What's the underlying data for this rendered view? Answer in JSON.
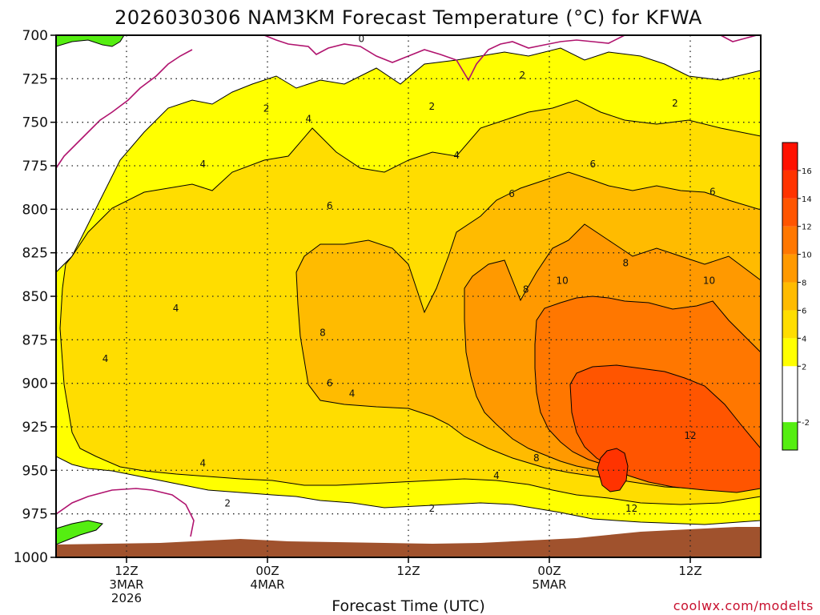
{
  "chart_data": {
    "type": "heatmap",
    "title": "2026030306 NAM3KM Forecast Temperature (°C) for KFWA",
    "xlabel": "Forecast Time (UTC)",
    "ylabel": "",
    "credit": "coolwx.com/modelts",
    "y_ticks": [
      "700",
      "725",
      "750",
      "775",
      "800",
      "825",
      "850",
      "875",
      "900",
      "925",
      "950",
      "975",
      "1000"
    ],
    "y_values": [
      700,
      725,
      750,
      775,
      800,
      825,
      850,
      875,
      900,
      925,
      950,
      975,
      1000
    ],
    "y_range": [
      700,
      1000
    ],
    "y_axis_inverted": true,
    "y_units": "hPa",
    "x_range_hours": [
      6,
      66
    ],
    "x_ticks": [
      {
        "hour": 12,
        "lines": [
          "12Z",
          "3MAR",
          "2026"
        ]
      },
      {
        "hour": 24,
        "lines": [
          "00Z",
          "4MAR"
        ]
      },
      {
        "hour": 36,
        "lines": [
          "12Z"
        ]
      },
      {
        "hour": 48,
        "lines": [
          "00Z",
          "5MAR"
        ]
      },
      {
        "hour": 60,
        "lines": [
          "12Z"
        ]
      }
    ],
    "grid": true,
    "colorbar": {
      "position": "right",
      "tick_labels": [
        "-2",
        "2",
        "4",
        "6",
        "8",
        "10",
        "12",
        "14",
        "16"
      ],
      "bands": [
        {
          "from": -4,
          "to": -2,
          "color": "#55ee11"
        },
        {
          "from": -2,
          "to": 2,
          "color": "#ffffff"
        },
        {
          "from": 2,
          "to": 4,
          "color": "#ffff00"
        },
        {
          "from": 4,
          "to": 6,
          "color": "#ffdd00"
        },
        {
          "from": 6,
          "to": 8,
          "color": "#ffbb00"
        },
        {
          "from": 8,
          "to": 10,
          "color": "#ff9900"
        },
        {
          "from": 10,
          "to": 12,
          "color": "#ff7700"
        },
        {
          "from": 12,
          "to": 14,
          "color": "#ff5500"
        },
        {
          "from": 14,
          "to": 16,
          "color": "#ff3300"
        },
        {
          "from": 16,
          "to": 18,
          "color": "#ff1100"
        }
      ]
    },
    "contour_labels": [
      {
        "text": "0",
        "hour": 32,
        "p": 702
      },
      {
        "text": "2",
        "hour": 23.9,
        "p": 742
      },
      {
        "text": "2",
        "hour": 38,
        "p": 741
      },
      {
        "text": "2",
        "hour": 45.7,
        "p": 723
      },
      {
        "text": "2",
        "hour": 58.7,
        "p": 739
      },
      {
        "text": "2",
        "hour": 20.6,
        "p": 969
      },
      {
        "text": "2",
        "hour": 38,
        "p": 972
      },
      {
        "text": "4",
        "hour": 18.5,
        "p": 774
      },
      {
        "text": "4",
        "hour": 27.5,
        "p": 748
      },
      {
        "text": "4",
        "hour": 40.1,
        "p": 769
      },
      {
        "text": "4",
        "hour": 16.2,
        "p": 857
      },
      {
        "text": "4",
        "hour": 10.2,
        "p": 886
      },
      {
        "text": "4",
        "hour": 18.5,
        "p": 946
      },
      {
        "text": "4",
        "hour": 31.2,
        "p": 906
      },
      {
        "text": "4",
        "hour": 43.5,
        "p": 953
      },
      {
        "text": "6",
        "hour": 29.3,
        "p": 798
      },
      {
        "text": "6",
        "hour": 44.8,
        "p": 791
      },
      {
        "text": "6",
        "hour": 51.7,
        "p": 774
      },
      {
        "text": "6",
        "hour": 61.9,
        "p": 790
      },
      {
        "text": "6",
        "hour": 29.3,
        "p": 900
      },
      {
        "text": "8",
        "hour": 28.7,
        "p": 871
      },
      {
        "text": "8",
        "hour": 46,
        "p": 846
      },
      {
        "text": "8",
        "hour": 54.5,
        "p": 831
      },
      {
        "text": "8",
        "hour": 46.9,
        "p": 943
      },
      {
        "text": "10",
        "hour": 49.1,
        "p": 841
      },
      {
        "text": "10",
        "hour": 61.6,
        "p": 841
      },
      {
        "text": "12",
        "hour": 60,
        "p": 930
      },
      {
        "text": "12",
        "hour": 55,
        "p": 972
      }
    ]
  }
}
